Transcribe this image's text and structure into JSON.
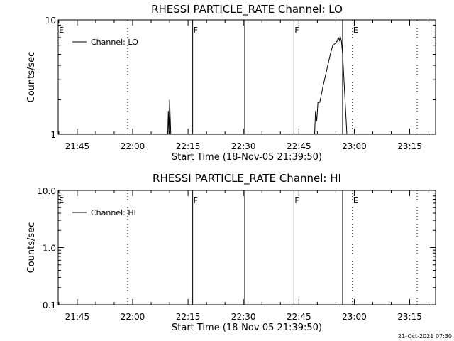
{
  "timestamp": "21-Oct-2021 07:30",
  "time_base_label": "Start Time (18-Nov-05 21:39:50)",
  "chart_data": [
    {
      "type": "line",
      "title": "RHESSI PARTICLE_RATE Channel: LO",
      "xlabel": "Start Time (18-Nov-05 21:39:50)",
      "ylabel": "Counts/sec",
      "yscale": "log",
      "ylim": [
        1,
        10
      ],
      "yticks": [
        {
          "v": 1,
          "label": "1"
        },
        {
          "v": 10,
          "label": "10"
        }
      ],
      "xlim": [
        "21:39:50",
        "23:22:00"
      ],
      "xticks": [
        "21:45",
        "22:00",
        "22:15",
        "22:30",
        "22:45",
        "23:00",
        "23:15"
      ],
      "legend": {
        "placement": "top-left",
        "entries": [
          "Channel: LO"
        ]
      },
      "grid": false,
      "series": [
        {
          "name": "Channel: LO",
          "color": "#000000",
          "points": [
            [
              "22:09:30",
              1
            ],
            [
              "22:09:40",
              1.6
            ],
            [
              "22:09:50",
              1
            ],
            [
              "22:10:00",
              2.0
            ],
            [
              "22:10:20",
              1
            ],
            [
              "22:49:15",
              1
            ],
            [
              "22:49:30",
              1.6
            ],
            [
              "22:49:50",
              1.3
            ],
            [
              "22:50:10",
              1.9
            ],
            [
              "22:50:40",
              1.9
            ],
            [
              "22:51:30",
              2.6
            ],
            [
              "22:52:30",
              3.6
            ],
            [
              "22:53:30",
              5.0
            ],
            [
              "22:54:10",
              6.0
            ],
            [
              "22:54:50",
              6.2
            ],
            [
              "22:55:20",
              6.5
            ],
            [
              "22:55:40",
              7.0
            ],
            [
              "22:56:00",
              6.6
            ],
            [
              "22:56:10",
              7.2
            ],
            [
              "22:56:30",
              6.6
            ],
            [
              "22:56:50",
              5.0
            ],
            [
              "22:57:30",
              2.0
            ],
            [
              "22:58:00",
              1
            ]
          ]
        }
      ],
      "annotations": [
        {
          "time": "21:39:50",
          "label": "E",
          "style": "dotted"
        },
        {
          "time": "21:58:40",
          "label": "",
          "style": "dotted"
        },
        {
          "time": "22:16:15",
          "label": "F",
          "style": "solid"
        },
        {
          "time": "22:30:20",
          "label": "",
          "style": "solid"
        },
        {
          "time": "22:43:40",
          "label": "F",
          "style": "solid"
        },
        {
          "time": "22:56:50",
          "label": "",
          "style": "solid"
        },
        {
          "time": "22:59:30",
          "label": "E",
          "style": "dotted"
        },
        {
          "time": "23:17:00",
          "label": "",
          "style": "dotted"
        }
      ]
    },
    {
      "type": "line",
      "title": "RHESSI PARTICLE_RATE Channel: HI",
      "xlabel": "Start Time (18-Nov-05 21:39:50)",
      "ylabel": "Counts/sec",
      "yscale": "log",
      "ylim": [
        0.1,
        10
      ],
      "yticks": [
        {
          "v": 0.1,
          "label": "0.1"
        },
        {
          "v": 1,
          "label": "1.0"
        },
        {
          "v": 10,
          "label": "10.0"
        }
      ],
      "xlim": [
        "21:39:50",
        "23:22:00"
      ],
      "xticks": [
        "21:45",
        "22:00",
        "22:15",
        "22:30",
        "22:45",
        "23:00",
        "23:15"
      ],
      "legend": {
        "placement": "top-left",
        "entries": [
          "Channel: HI"
        ]
      },
      "grid": false,
      "series": [
        {
          "name": "Channel: HI",
          "color": "#000000",
          "points": []
        }
      ],
      "annotations": [
        {
          "time": "21:39:50",
          "label": "E",
          "style": "dotted"
        },
        {
          "time": "21:58:40",
          "label": "",
          "style": "dotted"
        },
        {
          "time": "22:16:15",
          "label": "F",
          "style": "solid"
        },
        {
          "time": "22:30:20",
          "label": "",
          "style": "solid"
        },
        {
          "time": "22:43:40",
          "label": "F",
          "style": "solid"
        },
        {
          "time": "22:56:50",
          "label": "",
          "style": "solid"
        },
        {
          "time": "22:59:30",
          "label": "E",
          "style": "dotted"
        },
        {
          "time": "23:17:00",
          "label": "",
          "style": "dotted"
        }
      ]
    }
  ]
}
